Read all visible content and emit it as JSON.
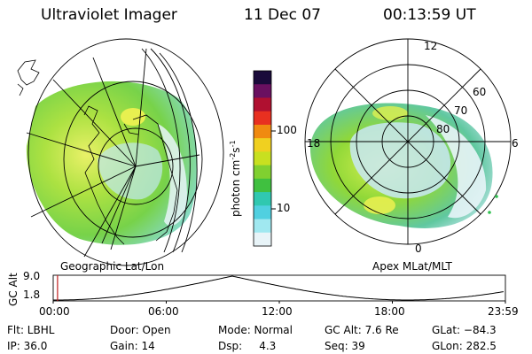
{
  "header": {
    "instrument": "Ultraviolet Imager",
    "date": "11 Dec 07",
    "time": "00:13:59 UT"
  },
  "left_panel": {
    "caption": "Geographic Lat/Lon"
  },
  "right_panel": {
    "caption": "Apex MLat/MLT",
    "mlt_labels": {
      "top": "12",
      "left": "18",
      "right": "6",
      "bottom": "0"
    },
    "lat_labels": [
      "60",
      "70",
      "80"
    ]
  },
  "colorbar": {
    "label_main": "photon cm",
    "label_exp1": "-2",
    "label_mid": "s",
    "label_exp2": "-1",
    "scale": "log",
    "ticks": [
      "100",
      "10"
    ],
    "colors": [
      "#1a0a3a",
      "#6a1060",
      "#b01030",
      "#e83020",
      "#f08a10",
      "#f0d020",
      "#c8e020",
      "#80d030",
      "#40c040",
      "#30c8b0",
      "#50d0e0",
      "#a0e8f0",
      "#e8f4f8"
    ]
  },
  "altitude_strip": {
    "axis_label": "GC Alt",
    "y_ticks": [
      "9.0",
      "1.8"
    ],
    "x_ticks": [
      "00:00",
      "06:00",
      "12:00",
      "18:00",
      "23:59"
    ],
    "current_marker_hours": 0.23
  },
  "footer": {
    "filter": "Flt: LBHL",
    "ip": "IP: 36.0",
    "door": "Door: Open",
    "gain": "Gain: 14",
    "mode": "Mode: Normal",
    "dsp": "Dsp:     4.3",
    "gc_alt": "GC Alt: 7.6 Re",
    "seq": "Seq: 39",
    "glat": "GLat: −84.3",
    "glon": "GLon: 282.5"
  }
}
